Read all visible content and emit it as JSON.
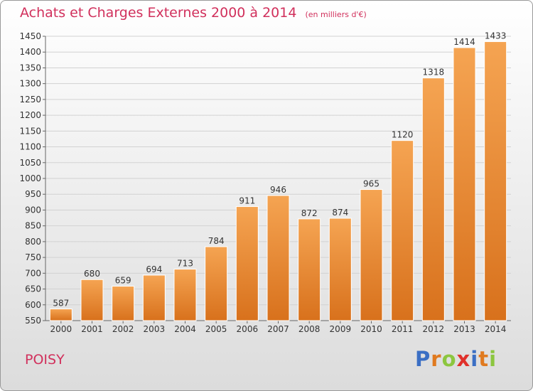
{
  "chart_data": {
    "type": "bar",
    "title": "Achats et Charges Externes 2000 à 2014",
    "subtitle": "(en milliers d'€)",
    "categories": [
      "2000",
      "2001",
      "2002",
      "2003",
      "2004",
      "2005",
      "2006",
      "2007",
      "2008",
      "2009",
      "2010",
      "2011",
      "2012",
      "2013",
      "2014"
    ],
    "values": [
      587,
      680,
      659,
      694,
      713,
      784,
      911,
      946,
      872,
      874,
      965,
      1120,
      1318,
      1414,
      1433
    ],
    "ylim": [
      550,
      1450
    ],
    "yticks": [
      550,
      600,
      650,
      700,
      750,
      800,
      850,
      900,
      950,
      1000,
      1050,
      1100,
      1150,
      1200,
      1250,
      1300,
      1350,
      1400,
      1450
    ],
    "grid": true,
    "bar_color_light": "#f5a452",
    "bar_color_dark": "#d8711c"
  },
  "footer": {
    "commune": "POISY",
    "logo_letters": [
      {
        "char": "P",
        "color": "#3b6fc4"
      },
      {
        "char": "r",
        "color": "#e07a1f"
      },
      {
        "char": "o",
        "color": "#8cc63f"
      },
      {
        "char": "x",
        "color": "#e0312b"
      },
      {
        "char": "i",
        "color": "#3b6fc4"
      },
      {
        "char": "t",
        "color": "#e07a1f"
      },
      {
        "char": "i",
        "color": "#8cc63f"
      }
    ]
  }
}
